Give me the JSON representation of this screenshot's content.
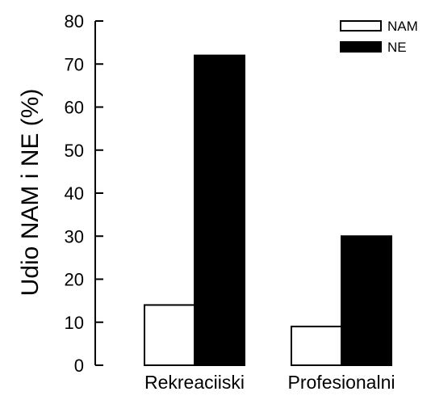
{
  "chart_data": {
    "type": "bar",
    "title": "",
    "xlabel": "",
    "ylabel": "Udio NAM i NE (%)",
    "ylim": [
      0,
      80
    ],
    "yticks": [
      0,
      10,
      20,
      30,
      40,
      50,
      60,
      70,
      80
    ],
    "categories": [
      "Rekreaciiski",
      "Profesionalni"
    ],
    "series": [
      {
        "name": "NAM",
        "color": "#ffffff",
        "values": [
          14,
          9
        ]
      },
      {
        "name": "NE",
        "color": "#000000",
        "values": [
          72,
          30
        ]
      }
    ],
    "legend": "top-right",
    "grid": false
  }
}
